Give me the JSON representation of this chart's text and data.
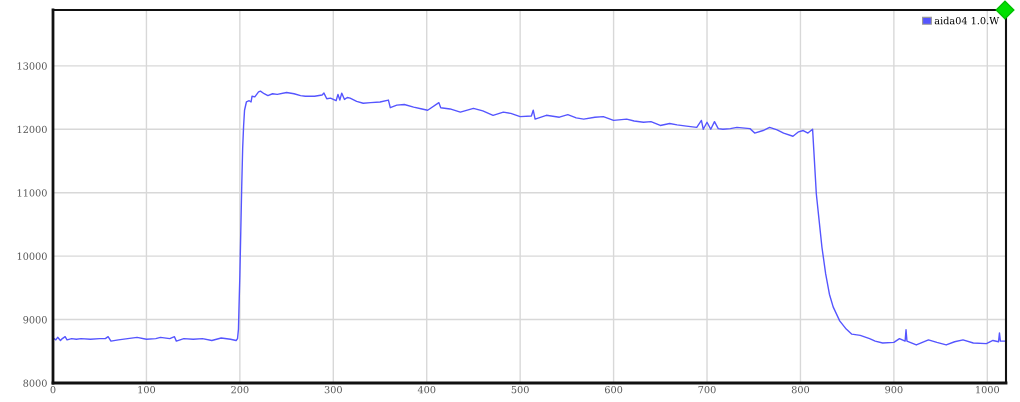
{
  "chart_data": {
    "type": "line",
    "xlim": [
      0,
      1020
    ],
    "ylim": [
      8000,
      13880
    ],
    "xticks": [
      0,
      100,
      200,
      300,
      400,
      500,
      600,
      700,
      800,
      900,
      1000
    ],
    "yticks": [
      8000,
      9000,
      10000,
      11000,
      12000,
      13000
    ],
    "grid": true,
    "legend": "top right",
    "line_style": "solid",
    "series": [
      {
        "name": "aida04 1.0.W",
        "color": "#5555ff",
        "x": [
          0,
          3,
          5,
          8,
          10,
          13,
          15,
          20,
          25,
          30,
          40,
          50,
          56,
          59,
          62,
          70,
          80,
          90,
          100,
          110,
          115,
          125,
          130,
          132,
          140,
          150,
          160,
          170,
          180,
          190,
          196,
          197.5,
          198.5,
          199,
          200,
          201,
          202,
          203,
          204,
          205,
          207,
          210,
          212,
          213,
          216,
          220,
          222,
          226,
          230,
          235,
          240,
          250,
          258,
          265,
          270,
          280,
          288,
          290,
          293,
          297,
          303,
          305,
          307,
          309,
          312,
          315,
          318,
          325,
          332,
          340,
          350,
          359,
          361,
          368,
          376,
          386,
          395,
          401,
          413,
          415,
          425,
          436,
          450,
          460,
          471,
          482,
          490,
          500,
          512,
          514,
          516,
          528,
          542,
          551,
          560,
          568,
          580,
          589,
          600,
          614,
          622,
          632,
          640,
          650,
          660,
          668,
          678,
          689,
          694,
          696,
          700,
          704,
          708,
          712,
          717,
          725,
          732,
          746,
          751,
          760,
          767,
          775,
          782,
          792,
          798,
          803,
          808,
          813,
          814.3,
          817,
          820,
          823,
          827,
          831,
          835,
          842,
          849,
          855,
          864,
          874,
          880,
          888,
          900,
          906,
          912,
          913,
          914,
          924,
          937,
          946,
          956,
          965,
          974,
          985,
          999,
          1006,
          1012,
          1013,
          1014,
          1019
        ],
        "values": [
          8710,
          8680,
          8720,
          8670,
          8700,
          8730,
          8680,
          8700,
          8690,
          8700,
          8690,
          8700,
          8700,
          8730,
          8660,
          8680,
          8700,
          8720,
          8690,
          8700,
          8720,
          8700,
          8730,
          8660,
          8700,
          8690,
          8700,
          8670,
          8710,
          8690,
          8670,
          8700,
          8850,
          9150,
          9700,
          10400,
          11100,
          11700,
          12050,
          12300,
          12430,
          12450,
          12430,
          12520,
          12510,
          12590,
          12600,
          12560,
          12530,
          12560,
          12550,
          12580,
          12560,
          12530,
          12520,
          12520,
          12540,
          12570,
          12480,
          12490,
          12450,
          12550,
          12460,
          12570,
          12470,
          12500,
          12490,
          12440,
          12410,
          12420,
          12430,
          12460,
          12340,
          12380,
          12390,
          12350,
          12320,
          12300,
          12420,
          12340,
          12320,
          12270,
          12330,
          12290,
          12220,
          12270,
          12250,
          12200,
          12210,
          12300,
          12160,
          12220,
          12190,
          12230,
          12180,
          12160,
          12190,
          12200,
          12140,
          12160,
          12130,
          12110,
          12120,
          12060,
          12090,
          12070,
          12050,
          12030,
          12140,
          12000,
          12110,
          12000,
          12120,
          12010,
          12000,
          12010,
          12030,
          12010,
          11940,
          11980,
          12030,
          11990,
          11940,
          11890,
          11960,
          11980,
          11940,
          12000,
          11670,
          10980,
          10560,
          10140,
          9720,
          9400,
          9200,
          8980,
          8850,
          8770,
          8750,
          8700,
          8660,
          8630,
          8640,
          8700,
          8660,
          8840,
          8660,
          8600,
          8680,
          8640,
          8600,
          8650,
          8680,
          8630,
          8620,
          8670,
          8650,
          8790,
          8660,
          8660
        ]
      }
    ]
  }
}
